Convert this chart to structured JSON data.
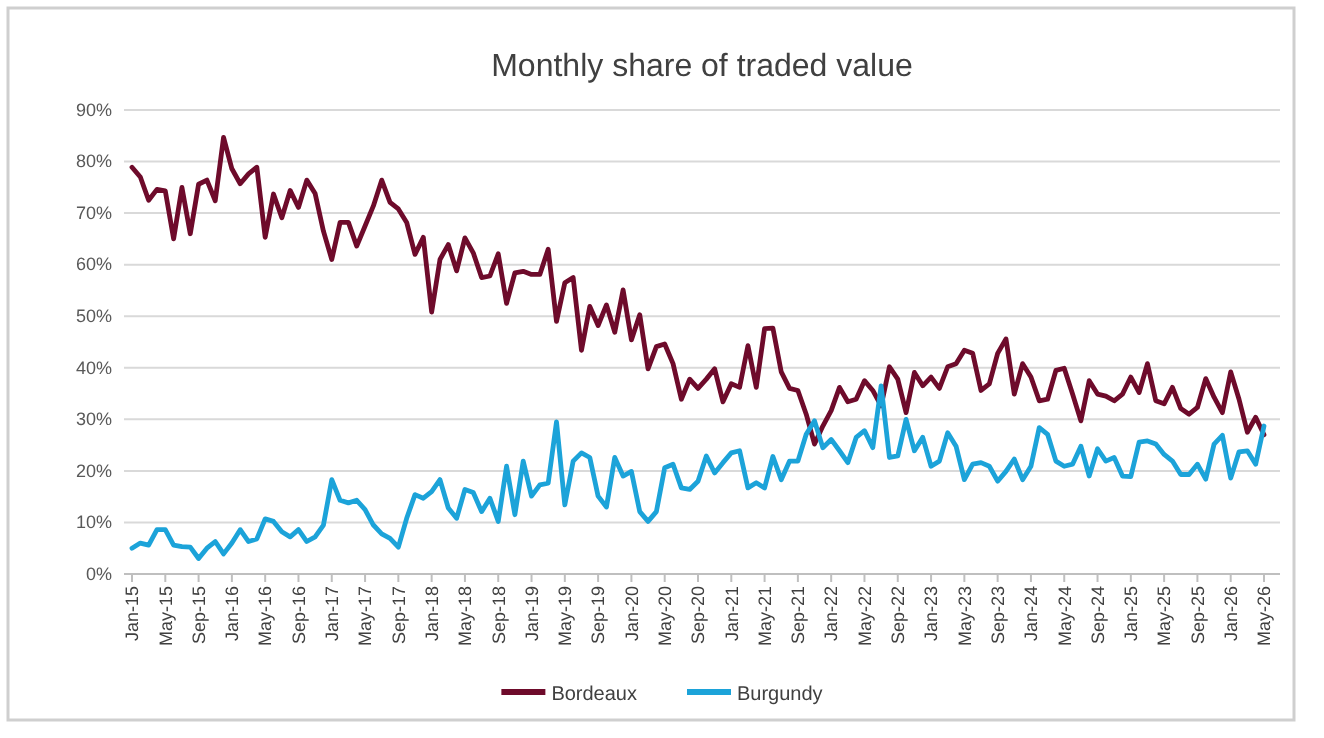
{
  "chart_data": {
    "type": "line",
    "title": "Monthly share of traded value",
    "categories": [
      "Jan-15",
      null,
      null,
      null,
      "May-15",
      null,
      null,
      null,
      "Sep-15",
      null,
      null,
      null,
      "Jan-16",
      null,
      null,
      null,
      "May-16",
      null,
      null,
      null,
      "Sep-16",
      null,
      null,
      null,
      "Jan-17",
      null,
      null,
      null,
      "May-17",
      null,
      null,
      null,
      "Sep-17",
      null,
      null,
      null,
      "Jan-18",
      null,
      null,
      null,
      "May-18",
      null,
      null,
      null,
      "Sep-18",
      null,
      null,
      null,
      "Jan-19",
      null,
      null,
      null,
      "May-19",
      null,
      null,
      null,
      "Sep-19",
      null,
      null,
      null,
      "Jan-20",
      null,
      null,
      null,
      "May-20",
      null,
      null,
      null,
      "Sep-20",
      null,
      null,
      null,
      "Jan-21",
      null,
      null,
      null,
      "May-21",
      null,
      null,
      null,
      "Sep-21",
      null,
      null,
      null,
      "Jan-22",
      null,
      null,
      null,
      "May-22",
      null,
      null,
      null,
      "Sep-22",
      null,
      null,
      null,
      "Jan-23",
      null,
      null,
      null,
      "May-23",
      null,
      null,
      null,
      "Sep-23",
      null,
      null,
      null,
      "Jan-24",
      null,
      null,
      null,
      "May-24",
      null,
      null,
      null,
      "Sep-24",
      null,
      null,
      null,
      "Jan-25",
      null,
      null,
      null,
      "May-25",
      null,
      null,
      null,
      "Sep-25",
      null,
      null,
      null,
      "Jan-26",
      null,
      null,
      null,
      "May-26"
    ],
    "series": [
      {
        "name": "Bordeaux",
        "color": "#6e0b2b",
        "values": [
          78.9,
          77,
          72.5,
          74.6,
          74.3,
          65,
          75,
          66,
          75.6,
          76.4,
          72.4,
          84.7,
          78.6,
          75.7,
          77.6,
          78.9,
          65.3,
          73.7,
          69.1,
          74.4,
          71.1,
          76.4,
          73.8,
          66.5,
          61,
          68.2,
          68.2,
          63.6,
          67.5,
          71.4,
          76.4,
          72.1,
          70.8,
          68.2,
          62,
          65.3,
          50.8,
          61,
          63.9,
          58.8,
          65.2,
          62.3,
          57.5,
          57.8,
          62.1,
          52.5,
          58.4,
          58.7,
          58.1,
          58.1,
          63,
          49,
          56.5,
          57.5,
          43.4,
          51.9,
          48.2,
          52.2,
          46.9,
          55.1,
          45.4,
          50.3,
          39.8,
          44.1,
          44.6,
          40.8,
          33.9,
          37.8,
          36,
          37.8,
          39.8,
          33.4,
          36.9,
          36.2,
          44.3,
          36.2,
          47.6,
          47.7,
          39.2,
          36,
          35.6,
          31,
          25.2,
          28.7,
          31.7,
          36.2,
          33.4,
          33.9,
          37.5,
          35.6,
          32.6,
          40.2,
          37.8,
          31.3,
          39.1,
          36.5,
          38.2,
          36,
          40.2,
          40.8,
          43.4,
          42.8,
          35.6,
          36.9,
          42.8,
          45.6,
          34.9,
          40.8,
          38.2,
          33.6,
          33.9,
          39.5,
          39.9,
          34.9,
          29.7,
          37.5,
          34.9,
          34.5,
          33.6,
          34.9,
          38.2,
          35.2,
          40.8,
          33.6,
          33,
          36.2,
          32.1,
          31,
          32.3,
          37.9,
          34.3,
          31.3,
          39.2,
          33.9,
          27.5,
          30.4,
          27
        ]
      },
      {
        "name": "Burgundy",
        "color": "#1ca3d9",
        "values": [
          5,
          6,
          5.6,
          8.6,
          8.6,
          5.6,
          5.3,
          5.2,
          3,
          5,
          6.3,
          3.9,
          6,
          8.6,
          6.3,
          6.8,
          10.7,
          10.2,
          8.2,
          7.2,
          8.6,
          6.3,
          7.2,
          9.5,
          18.3,
          14.3,
          13.8,
          14.3,
          12.5,
          9.5,
          7.8,
          6.9,
          5.2,
          10.8,
          15.4,
          14.7,
          16,
          18.3,
          12.8,
          10.8,
          16.4,
          15.8,
          12.1,
          14.7,
          10.2,
          20.9,
          11.5,
          21.9,
          15.1,
          17.3,
          17.6,
          29.5,
          13.4,
          21.9,
          23.5,
          22.6,
          15.1,
          13,
          22.6,
          19,
          19.9,
          12.1,
          10.2,
          12.1,
          20.6,
          21.3,
          16.7,
          16.4,
          18,
          22.9,
          19.6,
          21.6,
          23.5,
          23.9,
          16.7,
          17.7,
          16.7,
          22.8,
          18.3,
          21.9,
          21.9,
          27.1,
          29.7,
          24.5,
          26.1,
          23.9,
          21.6,
          26.5,
          27.8,
          24.5,
          36.5,
          22.6,
          22.9,
          30,
          23.9,
          26.5,
          20.9,
          21.9,
          27.4,
          24.8,
          18.3,
          21.3,
          21.6,
          20.9,
          18,
          19.9,
          22.3,
          18.3,
          20.9,
          28.4,
          27.1,
          21.9,
          20.9,
          21.3,
          24.8,
          19,
          24.3,
          21.9,
          22.6,
          19,
          18.9,
          25.6,
          25.8,
          25.2,
          23.2,
          21.9,
          19.3,
          19.3,
          21.3,
          18.4,
          25.2,
          26.9,
          18.6,
          23.7,
          23.9,
          21.3,
          28.7
        ]
      }
    ],
    "ylim": [
      0,
      90
    ],
    "yticks": [
      {
        "value": 0,
        "label": "0%"
      },
      {
        "value": 10,
        "label": "10%"
      },
      {
        "value": 20,
        "label": "20%"
      },
      {
        "value": 30,
        "label": "30%"
      },
      {
        "value": 40,
        "label": "40%"
      },
      {
        "value": 50,
        "label": "50%"
      },
      {
        "value": 60,
        "label": "60%"
      },
      {
        "value": 70,
        "label": "70%"
      },
      {
        "value": 80,
        "label": "80%"
      },
      {
        "value": 90,
        "label": "90%"
      }
    ],
    "grid": "y",
    "legend": "bottom",
    "marker": "none",
    "line_style": "solid"
  }
}
